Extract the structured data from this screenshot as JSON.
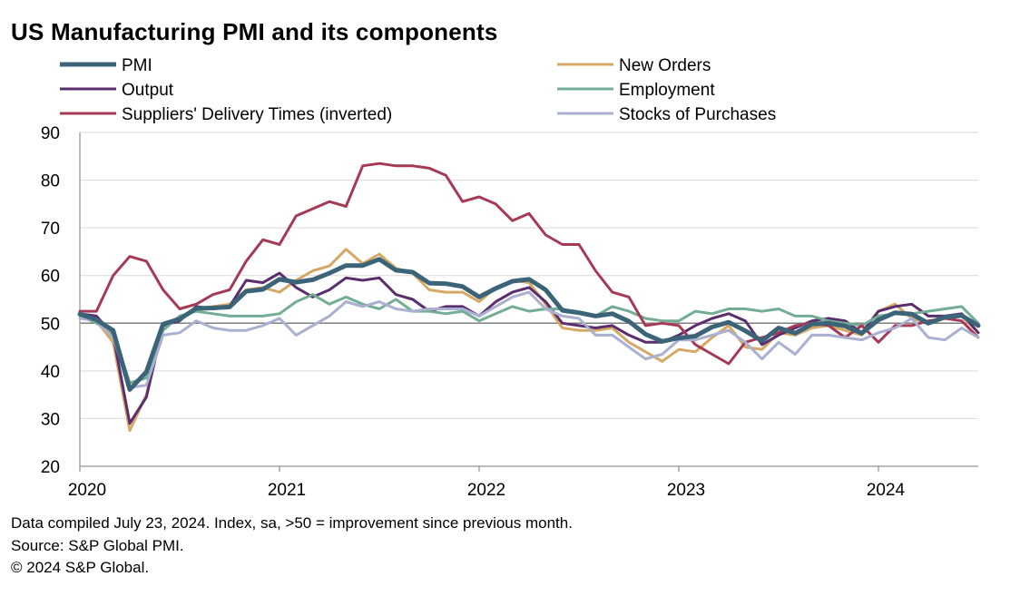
{
  "chart_data": {
    "type": "line",
    "title": "US Manufacturing PMI and its components",
    "ylim": [
      20,
      90
    ],
    "yticks": [
      20,
      30,
      40,
      50,
      60,
      70,
      80,
      90
    ],
    "xlim": [
      "2020-01",
      "2024-07"
    ],
    "xtick_labels": [
      "2020",
      "2021",
      "2022",
      "2023",
      "2024"
    ],
    "reference_line": 50,
    "grid": "horizontal",
    "legend_position": "top",
    "x": [
      "2020-01",
      "2020-02",
      "2020-03",
      "2020-04",
      "2020-05",
      "2020-06",
      "2020-07",
      "2020-08",
      "2020-09",
      "2020-10",
      "2020-11",
      "2020-12",
      "2021-01",
      "2021-02",
      "2021-03",
      "2021-04",
      "2021-05",
      "2021-06",
      "2021-07",
      "2021-08",
      "2021-09",
      "2021-10",
      "2021-11",
      "2021-12",
      "2022-01",
      "2022-02",
      "2022-03",
      "2022-04",
      "2022-05",
      "2022-06",
      "2022-07",
      "2022-08",
      "2022-09",
      "2022-10",
      "2022-11",
      "2022-12",
      "2023-01",
      "2023-02",
      "2023-03",
      "2023-04",
      "2023-05",
      "2023-06",
      "2023-07",
      "2023-08",
      "2023-09",
      "2023-10",
      "2023-11",
      "2023-12",
      "2024-01",
      "2024-02",
      "2024-03",
      "2024-04",
      "2024-05",
      "2024-06",
      "2024-07"
    ],
    "series": [
      {
        "name": "PMI",
        "color": "#3b6478",
        "width": 5,
        "values": [
          51.9,
          50.7,
          48.5,
          36.1,
          39.8,
          49.8,
          50.9,
          53.1,
          53.2,
          53.4,
          56.7,
          57.1,
          59.2,
          58.6,
          59.1,
          60.5,
          62.1,
          62.1,
          63.4,
          61.1,
          60.7,
          58.4,
          58.3,
          57.7,
          55.5,
          57.3,
          58.8,
          59.2,
          57.0,
          52.7,
          52.2,
          51.5,
          52.0,
          50.4,
          47.7,
          46.2,
          46.9,
          47.3,
          49.2,
          50.2,
          48.4,
          46.3,
          49.0,
          47.9,
          49.8,
          50.0,
          49.4,
          47.9,
          50.7,
          52.2,
          51.9,
          50.0,
          51.3,
          51.6,
          49.5
        ]
      },
      {
        "name": "New Orders",
        "color": "#d6a865",
        "width": 3,
        "values": [
          52.0,
          50.5,
          46.0,
          27.5,
          35.0,
          50.0,
          51.0,
          53.0,
          53.5,
          54.0,
          57.0,
          57.5,
          56.5,
          59.0,
          61.0,
          62.0,
          65.5,
          62.5,
          64.5,
          61.5,
          60.5,
          57.0,
          56.5,
          56.5,
          54.5,
          57.5,
          59.0,
          58.5,
          54.0,
          49.0,
          48.5,
          48.5,
          49.0,
          46.0,
          44.0,
          42.0,
          44.5,
          44.0,
          47.0,
          49.5,
          45.0,
          44.5,
          48.0,
          47.5,
          49.0,
          49.5,
          48.5,
          47.5,
          52.5,
          54.0,
          51.0,
          50.0,
          51.0,
          51.5,
          48.0
        ]
      },
      {
        "name": "Output",
        "color": "#5a2d6e",
        "width": 3,
        "values": [
          52.0,
          51.5,
          47.5,
          29.0,
          34.5,
          49.5,
          50.5,
          53.5,
          53.0,
          53.5,
          59.0,
          58.5,
          60.5,
          57.5,
          55.5,
          57.0,
          59.5,
          59.0,
          59.5,
          56.0,
          55.0,
          52.5,
          53.5,
          53.5,
          51.5,
          54.5,
          56.5,
          57.5,
          54.5,
          50.0,
          49.5,
          49.0,
          49.5,
          47.5,
          46.0,
          46.0,
          47.5,
          49.5,
          51.0,
          52.0,
          50.5,
          45.5,
          47.5,
          49.0,
          50.5,
          51.0,
          50.5,
          48.0,
          52.5,
          53.5,
          54.0,
          51.5,
          51.5,
          52.0,
          48.0
        ]
      },
      {
        "name": "Employment",
        "color": "#73ad94",
        "width": 3,
        "values": [
          51.5,
          50.0,
          48.0,
          37.5,
          38.5,
          48.5,
          51.5,
          52.5,
          52.0,
          51.5,
          51.5,
          51.5,
          52.0,
          54.5,
          56.0,
          54.0,
          55.5,
          54.0,
          53.0,
          55.0,
          52.5,
          52.5,
          52.0,
          52.5,
          50.5,
          52.0,
          53.5,
          52.5,
          53.0,
          53.0,
          52.0,
          51.5,
          53.5,
          52.5,
          51.0,
          50.5,
          50.5,
          52.5,
          52.0,
          53.0,
          53.0,
          52.5,
          53.0,
          51.5,
          51.5,
          50.5,
          50.0,
          49.5,
          51.5,
          52.0,
          52.0,
          52.5,
          53.0,
          53.5,
          50.0
        ]
      },
      {
        "name": "Suppliers' Delivery Times (inverted)",
        "color": "#a53a56",
        "width": 3,
        "values": [
          52.5,
          52.5,
          60.0,
          64.0,
          63.0,
          57.0,
          53.0,
          54.0,
          56.0,
          57.0,
          63.0,
          67.5,
          66.5,
          72.5,
          74.0,
          75.5,
          74.5,
          83.0,
          83.5,
          83.0,
          83.0,
          82.5,
          81.0,
          75.5,
          76.5,
          75.0,
          71.5,
          73.0,
          68.5,
          66.5,
          66.5,
          61.0,
          56.5,
          55.5,
          49.5,
          50.0,
          49.5,
          45.5,
          43.5,
          41.5,
          46.0,
          47.0,
          48.0,
          49.5,
          50.0,
          49.5,
          47.0,
          49.5,
          46.0,
          49.5,
          49.5,
          50.5,
          51.0,
          50.5,
          47.0
        ]
      },
      {
        "name": "Stocks of Purchases",
        "color": "#aab0d0",
        "width": 3,
        "values": [
          51.0,
          50.5,
          47.0,
          36.5,
          37.0,
          47.5,
          48.0,
          50.5,
          49.0,
          48.5,
          48.5,
          49.5,
          51.0,
          47.5,
          49.5,
          51.5,
          54.5,
          53.5,
          54.5,
          53.0,
          52.5,
          53.0,
          53.0,
          53.0,
          51.5,
          53.5,
          55.5,
          56.5,
          53.0,
          51.5,
          51.0,
          47.5,
          47.5,
          45.0,
          42.5,
          43.5,
          46.5,
          46.5,
          47.5,
          48.5,
          46.0,
          42.5,
          46.0,
          43.5,
          47.5,
          47.5,
          47.0,
          46.5,
          48.0,
          49.0,
          51.0,
          47.0,
          46.5,
          49.0,
          47.0
        ]
      }
    ]
  },
  "footnotes": [
    "Data compiled July 23, 2024. Index, sa, >50 = improvement since previous month.",
    "Source: S&P Global PMI.",
    "© 2024 S&P Global."
  ]
}
